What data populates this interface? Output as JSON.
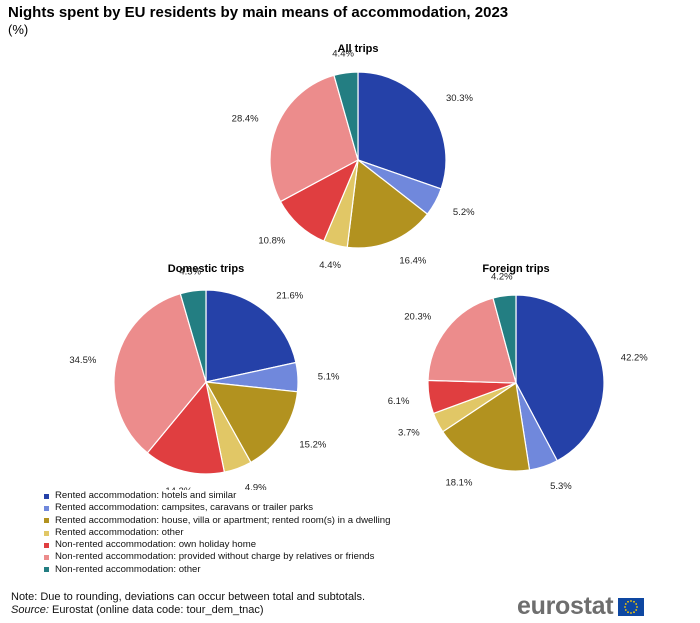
{
  "title": "Nights spent by EU residents by main means of accommodation, 2023",
  "subtitle": "(%)",
  "chart_data": {
    "type": "pie",
    "categories": [
      "Rented accommodation: hotels and similar",
      "Rented accommodation: campsites, caravans or trailer parks",
      "Rented accommodation: house, villa or apartment; rented room(s) in a dwelling",
      "Rented accommodation: other",
      "Non-rented accommodation: own holiday home",
      "Non-rented accommodation: provided without charge by relatives or friends",
      "Non-rented accommodation: other"
    ],
    "colors": [
      "#2541a8",
      "#7088dc",
      "#b2921f",
      "#e1c766",
      "#e03e40",
      "#ec8c8c",
      "#237e82"
    ],
    "pies": [
      {
        "title": "All trips",
        "values": [
          30.3,
          5.2,
          16.4,
          4.4,
          10.8,
          28.4,
          4.4
        ],
        "labels": [
          "30.3%",
          "5.2%",
          "16.4%",
          "4.4%",
          "10.8%",
          "28.4%",
          "4.4%"
        ]
      },
      {
        "title": "Domestic trips",
        "values": [
          21.6,
          5.1,
          15.2,
          4.9,
          14.2,
          34.5,
          4.5
        ],
        "labels": [
          "21.6%",
          "5.1%",
          "15.2%",
          "4.9%",
          "14.2%",
          "34.5%",
          "4.5%"
        ]
      },
      {
        "title": "Foreign trips",
        "values": [
          42.2,
          5.3,
          18.1,
          3.7,
          6.1,
          20.3,
          4.2
        ],
        "labels": [
          "42.2%",
          "5.3%",
          "18.1%",
          "3.7%",
          "6.1%",
          "20.3%",
          "4.2%"
        ]
      }
    ],
    "legend_position": "bottom-left"
  },
  "footnote": {
    "note": "Note: Due to rounding, deviations can occur between total and subtotals.",
    "source_label": "Source:",
    "source_text": " Eurostat (online data code: tour_dem_tnac)"
  },
  "logo": {
    "text": "eurostat",
    "flag_color": "#0e47a1",
    "star_color": "#ffcc00"
  }
}
